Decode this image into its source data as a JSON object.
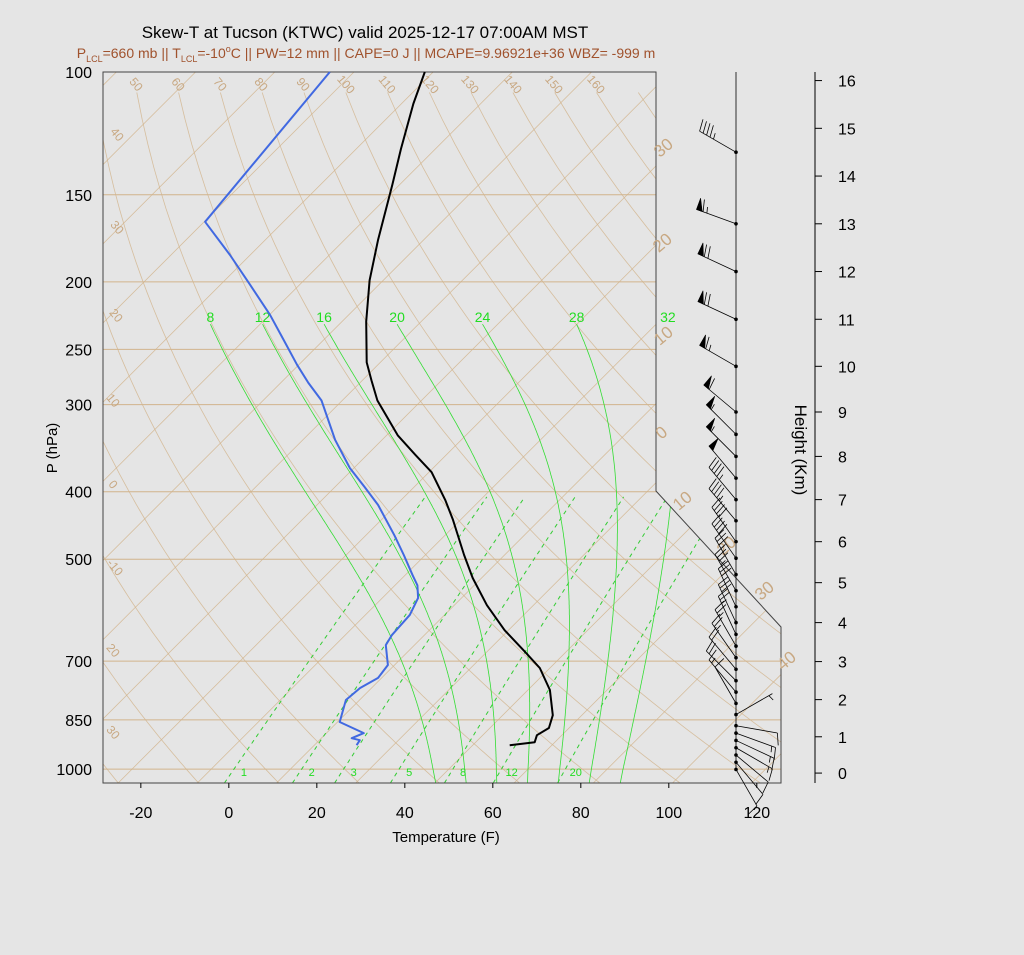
{
  "chart_data": {
    "type": "skewt",
    "title": "Skew-T at Tucson (KTWC) valid 2025-12-17 07:00AM MST",
    "subtitle": [
      "P",
      "LCL",
      "=660 mb || T",
      "LCL",
      "=-10",
      "o",
      "C || PW=12 mm || CAPE=0 J || MCAPE=9.96921e+36 WBZ= -999 m"
    ],
    "xlabel": "Temperature (F)",
    "ylabel": "P (hPa)",
    "y2label": "Height (Km)",
    "xlim": [
      -28.6,
      125.5
    ],
    "xticks": [
      -20,
      0,
      20,
      40,
      60,
      80,
      100,
      120
    ],
    "ylim": [
      1047,
      100
    ],
    "ylog": true,
    "yticks": [
      100,
      150,
      200,
      250,
      300,
      400,
      500,
      700,
      850,
      1000
    ],
    "y2ticks": [
      0,
      1,
      2,
      3,
      4,
      5,
      6,
      7,
      8,
      9,
      10,
      11,
      12,
      13,
      14,
      15,
      16
    ],
    "grid": true,
    "temperature": {
      "color": "#000000",
      "pressure": [
        924,
        915,
        894,
        873,
        837,
        770,
        716,
        679,
        632,
        582,
        532,
        493,
        439,
        411,
        375,
        354,
        332,
        296,
        277,
        261,
        228,
        199,
        174,
        145,
        129,
        111,
        100
      ],
      "values": [
        58.4,
        63.4,
        62.3,
        63.4,
        61.4,
        55.0,
        47.7,
        40.7,
        31.1,
        21.4,
        12.0,
        4.8,
        -5.7,
        -12.0,
        -21.4,
        -29.1,
        -37.5,
        -50.0,
        -55.9,
        -61.1,
        -70.5,
        -79.1,
        -86.4,
        -95.7,
        -101.8,
        -109.3,
        -113.9
      ]
    },
    "dewpoint": {
      "color": "#4169e1",
      "pressure": [
        924,
        909,
        903,
        888,
        856,
        796,
        765,
        740,
        709,
        664,
        642,
        601,
        568,
        545,
        527,
        493,
        462,
        418,
        394,
        370,
        337,
        296,
        279,
        263,
        242,
        223,
        202,
        183,
        164,
        100
      ],
      "values": [
        23.6,
        23.2,
        20.9,
        22.5,
        14.5,
        10.9,
        11.4,
        13.2,
        12.5,
        7.5,
        6.6,
        6.1,
        4.1,
        1.1,
        -2.3,
        -8.9,
        -15.5,
        -26.1,
        -33.2,
        -40.9,
        -50.7,
        -62.7,
        -69.8,
        -76.4,
        -85.2,
        -93.9,
        -105.2,
        -116.6,
        -129.8,
        -135.5
      ]
    },
    "mixing_ratios": {
      "color": "#33cc33",
      "values": [
        1,
        2,
        3,
        5,
        8,
        12,
        20
      ]
    },
    "moist_adiabats": {
      "color": "#33dd33",
      "values": [
        8,
        12,
        16,
        20,
        24,
        28,
        32
      ]
    },
    "dry_adiabat_labels": [
      "50",
      "60",
      "70",
      "80",
      "90",
      "100",
      "110",
      "120",
      "130",
      "140",
      "150",
      "160"
    ],
    "left_labels": [
      "40",
      "30",
      "20",
      "10",
      "0",
      "-10",
      "20",
      "30"
    ],
    "isotherm_labels": [
      "30",
      "20",
      "10",
      "0",
      "10",
      "20",
      "30",
      "40"
    ],
    "wind": {
      "heights_km": [
        0.1,
        0.3,
        0.5,
        0.7,
        0.9,
        1.1,
        1.3,
        1.6,
        1.9,
        2.2,
        2.5,
        2.8,
        3.1,
        3.4,
        3.7,
        4.0,
        4.4,
        4.8,
        5.2,
        5.6,
        6.0,
        6.5,
        7.0,
        7.5,
        8.0,
        8.5,
        9.0,
        10.0,
        11.0,
        12.0,
        13.0,
        14.5
      ],
      "direction_deg": [
        150,
        140,
        130,
        120,
        115,
        110,
        100,
        60,
        330,
        320,
        315,
        320,
        325,
        330,
        335,
        335,
        335,
        330,
        330,
        325,
        325,
        320,
        320,
        320,
        315,
        315,
        310,
        300,
        295,
        295,
        290,
        300
      ],
      "speed_kt": [
        10,
        10,
        10,
        15,
        15,
        15,
        10,
        5,
        10,
        15,
        20,
        20,
        25,
        25,
        25,
        30,
        30,
        35,
        35,
        40,
        40,
        45,
        45,
        50,
        55,
        55,
        60,
        65,
        70,
        70,
        65,
        45
      ]
    }
  }
}
